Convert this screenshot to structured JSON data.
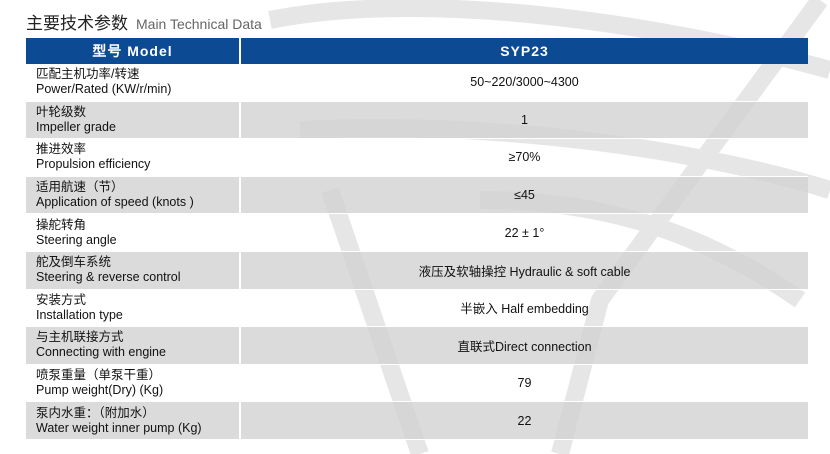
{
  "title": {
    "cn": "主要技术参数",
    "en": "Main Technical Data"
  },
  "header": {
    "param": "型号 Model",
    "value": "SYP23"
  },
  "rows": [
    {
      "cn": "匹配主机功率/转速",
      "en": "Power/Rated (KW/r/min)",
      "value": "50~220/3000~4300"
    },
    {
      "cn": "叶轮级数",
      "en": "Impeller grade",
      "value": "1"
    },
    {
      "cn": "推进效率",
      "en": "Propulsion efficiency",
      "value": "≥70%"
    },
    {
      "cn": "适用航速（节）",
      "en": "Application of speed (knots )",
      "value": "≤45"
    },
    {
      "cn": "操舵转角",
      "en": "Steering angle",
      "value": "22 ± 1°"
    },
    {
      "cn": "舵及倒车系统",
      "en": "Steering & reverse control",
      "value": "液压及软轴操控  Hydraulic & soft cable"
    },
    {
      "cn": "安装方式",
      "en": "Installation type",
      "value": "半嵌入  Half embedding"
    },
    {
      "cn": "与主机联接方式",
      "en": "Connecting with engine",
      "value": "直联式Direct connection"
    },
    {
      "cn": "喷泵重量（单泵干重）",
      "en": "Pump weight(Dry) (Kg)",
      "value": "79"
    },
    {
      "cn": "泵内水重：（附加水）",
      "en": "Water weight inner pump (Kg)",
      "value": "22"
    }
  ],
  "colors": {
    "header": "#0d4a94",
    "alt_row": "#d8d8d8"
  }
}
